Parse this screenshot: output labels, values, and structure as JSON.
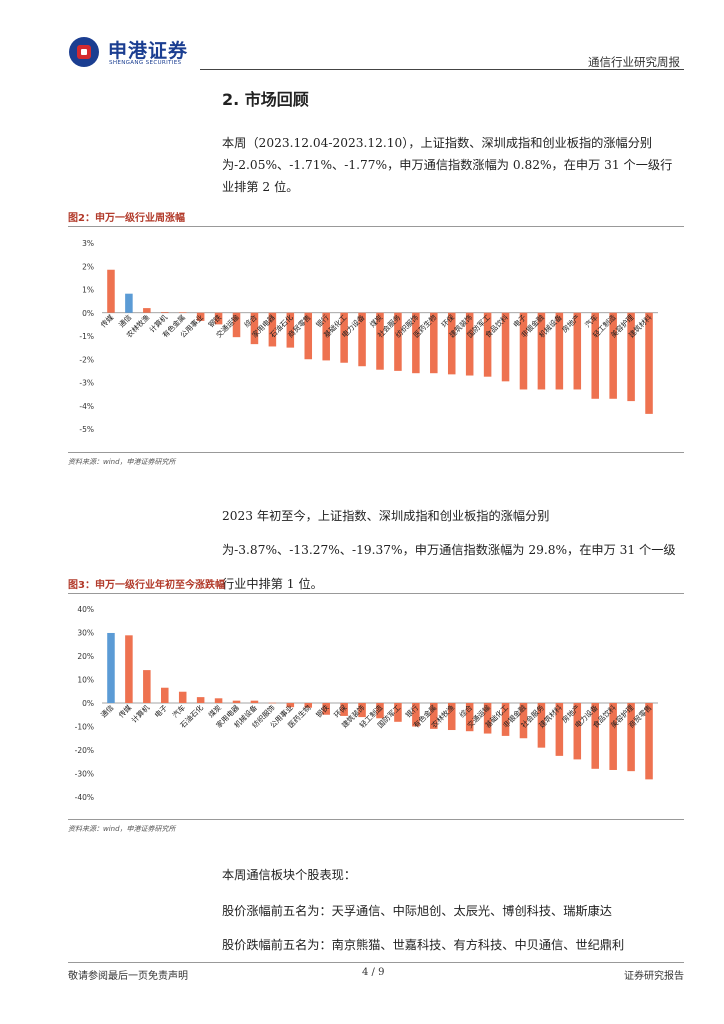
{
  "header": {
    "brand_cn": "申港证券",
    "brand_en": "SHENGANG SECURITIES",
    "report_type": "通信行业研究周报"
  },
  "section": {
    "title": "2. 市场回顾"
  },
  "paragraphs": {
    "p1": "本周（2023.12.04-2023.12.10），上证指数、深圳成指和创业板指的涨幅分别为-2.05%、-1.71%、-1.77%，申万通信指数涨幅为 0.82%，在申万 31 个一级行业排第 2 位。",
    "p2": "2023 年初至今，上证指数、深圳成指和创业板指的涨幅分别为-3.87%、-13.27%、-19.37%，申万通信指数涨幅为 29.8%，在申万 31 个一级行业中排第 1 位。",
    "p3": "本周通信板块个股表现：",
    "p4": "股价涨幅前五名为：天孚通信、中际旭创、太辰光、博创科技、瑞斯康达",
    "p5": "股价跌幅前五名为：南京熊猫、世嘉科技、有方科技、中贝通信、世纪鼎利"
  },
  "figures": {
    "fig2_title": "图2：申万一级行业周涨幅",
    "fig3_title": "图3：申万一级行业年初至今涨跌幅",
    "source": "资料来源：wind，申港证券研究所"
  },
  "colors": {
    "bar": "#ee7250",
    "highlight": "#5b9bd5",
    "brand": "#1b3e91",
    "accent": "#d42a2f"
  },
  "chart_data": [
    {
      "type": "bar",
      "title": "图2：申万一级行业周涨幅",
      "categories": [
        "传媒",
        "通信",
        "农林牧渔",
        "计算机",
        "有色金属",
        "公用事业",
        "钢铁",
        "交通运输",
        "综合",
        "家用电器",
        "石油石化",
        "商贸零售",
        "银行",
        "基础化工",
        "电力设备",
        "煤炭",
        "社会服务",
        "纺织服饰",
        "医药生物",
        "环保",
        "建筑装饰",
        "国防军工",
        "食品饮料",
        "电子",
        "非银金融",
        "机械设备",
        "房地产",
        "汽车",
        "轻工制造",
        "美容护理",
        "建筑材料"
      ],
      "values": [
        1.85,
        0.82,
        0.2,
        0.03,
        0.02,
        -0.35,
        -0.5,
        -1.05,
        -1.35,
        -1.45,
        -1.5,
        -2.0,
        -2.05,
        -2.15,
        -2.3,
        -2.45,
        -2.5,
        -2.6,
        -2.6,
        -2.65,
        -2.7,
        -2.75,
        -2.95,
        -3.3,
        -3.3,
        -3.3,
        -3.3,
        -3.7,
        -3.7,
        -3.8,
        -4.35
      ],
      "highlight": "通信",
      "ylim": [
        -5,
        3
      ],
      "yticks": [
        "3%",
        "2%",
        "1%",
        "0%",
        "-1%",
        "-2%",
        "-3%",
        "-4%",
        "-5%"
      ]
    },
    {
      "type": "bar",
      "title": "图3：申万一级行业年初至今涨跌幅",
      "categories": [
        "通信",
        "传媒",
        "计算机",
        "电子",
        "汽车",
        "石油石化",
        "煤炭",
        "家用电器",
        "机械设备",
        "纺织服饰",
        "公用事业",
        "医药生物",
        "钢铁",
        "环保",
        "建筑装饰",
        "轻工制造",
        "国防军工",
        "银行",
        "有色金属",
        "农林牧渔",
        "综合",
        "交通运输",
        "基础化工",
        "非银金融",
        "社会服务",
        "建筑材料",
        "房地产",
        "电力设备",
        "食品饮料",
        "美容护理",
        "商贸零售"
      ],
      "values": [
        29.8,
        28.8,
        14.0,
        6.5,
        4.8,
        2.5,
        2.0,
        1.0,
        1.0,
        0.1,
        -1.8,
        -2.0,
        -5.0,
        -5.5,
        -6.0,
        -6.5,
        -8.0,
        -10.0,
        -11.0,
        -11.5,
        -12.0,
        -13.0,
        -14.0,
        -15.0,
        -19.0,
        -22.5,
        -24.0,
        -28.0,
        -28.5,
        -29.0,
        -32.5
      ],
      "highlight": "通信",
      "ylim": [
        -40,
        40
      ],
      "yticks": [
        "40%",
        "30%",
        "20%",
        "10%",
        "0%",
        "-10%",
        "-20%",
        "-30%",
        "-40%"
      ]
    }
  ],
  "footer": {
    "left": "敬请参阅最后一页免责声明",
    "center": "4 / 9",
    "right": "证券研究报告"
  }
}
